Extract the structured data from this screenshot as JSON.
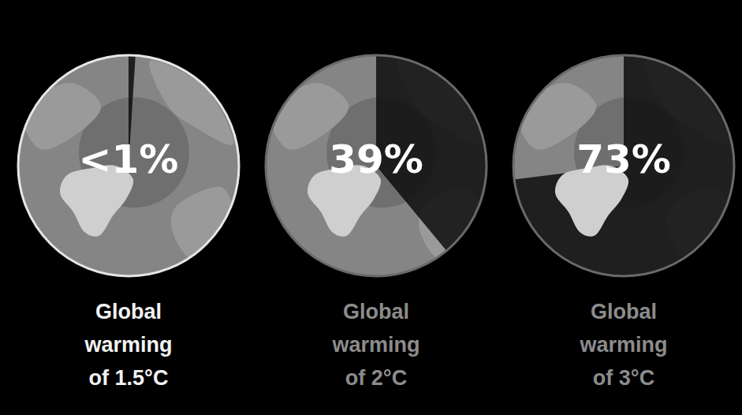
{
  "chart_data": {
    "type": "pie",
    "categories": [
      "Global warming of 1.5°C",
      "Global warming of 2°C",
      "Global warming of 3°C"
    ],
    "values": [
      1,
      39,
      73
    ],
    "value_labels": [
      "<1%",
      "39%",
      "73%"
    ],
    "color": "#111111",
    "data_labels": true
  }
}
